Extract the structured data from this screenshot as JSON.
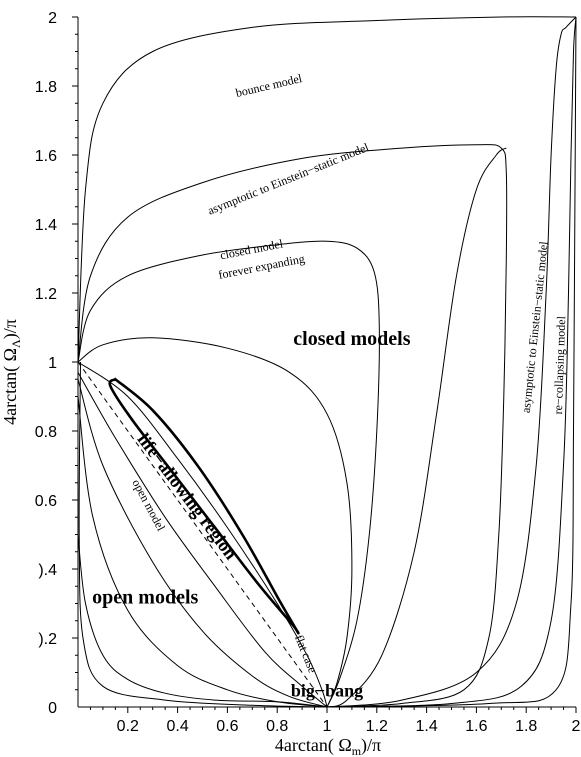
{
  "chart_data": {
    "type": "line",
    "xlabel_main": "4arctan( Ω",
    "xlabel_sub": "m",
    "xlabel_tail": ")/π",
    "ylabel_main": "4arctan( Ω",
    "ylabel_sub": "Λ",
    "ylabel_tail": ")/π",
    "xlim": [
      0,
      2
    ],
    "ylim": [
      0,
      2
    ],
    "xticks": [
      {
        "v": 0.2,
        "label": "0.2"
      },
      {
        "v": 0.4,
        "label": "0.4"
      },
      {
        "v": 0.6,
        "label": "0.6"
      },
      {
        "v": 0.8,
        "label": "0.8"
      },
      {
        "v": 1.0,
        "label": "1"
      },
      {
        "v": 1.2,
        "label": "1.2"
      },
      {
        "v": 1.4,
        "label": "1.4"
      },
      {
        "v": 1.6,
        "label": "1.6"
      },
      {
        "v": 1.8,
        "label": "1.8"
      },
      {
        "v": 2.0,
        "label": "2"
      }
    ],
    "yticks": [
      {
        "v": 0.0,
        "label": "0"
      },
      {
        "v": 0.2,
        "label": ").2"
      },
      {
        "v": 0.4,
        "label": ").4"
      },
      {
        "v": 0.6,
        "label": "0.6"
      },
      {
        "v": 0.8,
        "label": "0.8"
      },
      {
        "v": 1.0,
        "label": "1"
      },
      {
        "v": 1.2,
        "label": "1.2"
      },
      {
        "v": 1.4,
        "label": "1.4"
      },
      {
        "v": 1.6,
        "label": "1.6"
      },
      {
        "v": 1.8,
        "label": "1.8"
      },
      {
        "v": 2.0,
        "label": "2"
      }
    ],
    "grid": false,
    "series": [
      {
        "points": [
          [
            0,
            1.0
          ],
          [
            0.03,
            1.5
          ],
          [
            0.1,
            1.75
          ],
          [
            0.3,
            1.9
          ],
          [
            0.7,
            1.97
          ],
          [
            1.2,
            1.99
          ],
          [
            1.7,
            2.0
          ],
          [
            2,
            2.0
          ]
        ]
      },
      {
        "points": [
          [
            0,
            1.0
          ],
          [
            0.05,
            1.25
          ],
          [
            0.2,
            1.42
          ],
          [
            0.5,
            1.52
          ],
          [
            0.9,
            1.59
          ],
          [
            1.3,
            1.62
          ],
          [
            1.6,
            1.63
          ],
          [
            1.7,
            1.62
          ],
          [
            1.72,
            1.55
          ],
          [
            1.72,
            1.3
          ],
          [
            1.71,
            0.9
          ],
          [
            1.69,
            0.5
          ],
          [
            1.65,
            0.2
          ],
          [
            1.55,
            0.05
          ],
          [
            1.3,
            0.01
          ],
          [
            1.0,
            0
          ]
        ]
      },
      {
        "points": [
          [
            0,
            1.0
          ],
          [
            0.05,
            1.15
          ],
          [
            0.2,
            1.25
          ],
          [
            0.5,
            1.31
          ],
          [
            0.8,
            1.34
          ],
          [
            1.0,
            1.35
          ],
          [
            1.12,
            1.33
          ],
          [
            1.19,
            1.26
          ],
          [
            1.21,
            1.1
          ],
          [
            1.2,
            0.8
          ],
          [
            1.17,
            0.5
          ],
          [
            1.12,
            0.25
          ],
          [
            1.05,
            0.08
          ],
          [
            1.0,
            0
          ]
        ]
      },
      {
        "points": [
          [
            0,
            1.0
          ],
          [
            0.1,
            1.05
          ],
          [
            0.3,
            1.07
          ],
          [
            0.6,
            1.04
          ],
          [
            0.85,
            0.97
          ],
          [
            1.0,
            0.85
          ],
          [
            1.08,
            0.65
          ],
          [
            1.1,
            0.4
          ],
          [
            1.08,
            0.2
          ],
          [
            1.04,
            0.07
          ],
          [
            1.0,
            0
          ]
        ]
      },
      {
        "points": [
          [
            0,
            1.0
          ],
          [
            0.2,
            0.9
          ],
          [
            0.4,
            0.72
          ],
          [
            0.6,
            0.52
          ],
          [
            0.8,
            0.3
          ],
          [
            0.92,
            0.15
          ],
          [
            0.98,
            0.05
          ],
          [
            1.0,
            0
          ]
        ]
      },
      {
        "points": [
          [
            0,
            0.97
          ],
          [
            0.15,
            0.78
          ],
          [
            0.35,
            0.55
          ],
          [
            0.55,
            0.35
          ],
          [
            0.75,
            0.16
          ],
          [
            0.9,
            0.06
          ],
          [
            1.0,
            0
          ]
        ]
      },
      {
        "points": [
          [
            0,
            0.95
          ],
          [
            0.1,
            0.7
          ],
          [
            0.3,
            0.42
          ],
          [
            0.5,
            0.22
          ],
          [
            0.7,
            0.09
          ],
          [
            0.85,
            0.03
          ],
          [
            1.0,
            0
          ]
        ]
      },
      {
        "points": [
          [
            0,
            0.9
          ],
          [
            0.06,
            0.55
          ],
          [
            0.2,
            0.28
          ],
          [
            0.4,
            0.12
          ],
          [
            0.6,
            0.05
          ],
          [
            0.8,
            0.015
          ],
          [
            1.0,
            0
          ]
        ]
      },
      {
        "points": [
          [
            0.01,
            1.0
          ],
          [
            0.005,
            0.5
          ],
          [
            0.02,
            0.2
          ],
          [
            0.1,
            0.06
          ],
          [
            0.35,
            0.02
          ],
          [
            0.7,
            0.005
          ],
          [
            1.0,
            0
          ]
        ]
      },
      {
        "points": [
          [
            1.0,
            0
          ],
          [
            1.08,
            0.02
          ],
          [
            1.22,
            0.15
          ],
          [
            1.35,
            0.45
          ],
          [
            1.44,
            0.85
          ],
          [
            1.52,
            1.25
          ],
          [
            1.6,
            1.5
          ],
          [
            1.68,
            1.6
          ],
          [
            1.72,
            1.62
          ]
        ]
      },
      {
        "points": [
          [
            1.0,
            0
          ],
          [
            1.3,
            0.02
          ],
          [
            1.6,
            0.1
          ],
          [
            1.76,
            0.3
          ],
          [
            1.84,
            0.7
          ],
          [
            1.88,
            1.2
          ],
          [
            1.9,
            1.6
          ],
          [
            1.92,
            1.85
          ],
          [
            1.94,
            1.95
          ],
          [
            1.96,
            1.97
          ],
          [
            2.0,
            2.0
          ]
        ]
      },
      {
        "points": [
          [
            1.0,
            0
          ],
          [
            1.5,
            0.01
          ],
          [
            1.78,
            0.06
          ],
          [
            1.9,
            0.25
          ],
          [
            1.95,
            0.7
          ],
          [
            1.97,
            1.2
          ],
          [
            1.98,
            1.6
          ],
          [
            1.99,
            1.9
          ],
          [
            2.0,
            2.0
          ]
        ]
      },
      {
        "points": [
          [
            1.0,
            0
          ],
          [
            1.65,
            0.01
          ],
          [
            1.92,
            0.05
          ],
          [
            1.98,
            0.3
          ],
          [
            1.99,
            0.8
          ],
          [
            1.995,
            1.4
          ],
          [
            2.0,
            2.0
          ]
        ]
      },
      {
        "points": [
          [
            1.0,
            0
          ],
          [
            0.8,
            0.015
          ],
          [
            0.55,
            0.02
          ],
          [
            0.35,
            0.04
          ],
          [
            0.2,
            0.08
          ],
          [
            0.1,
            0.15
          ],
          [
            0.03,
            0.3
          ],
          [
            0,
            0.5
          ]
        ]
      }
    ],
    "flat_case": {
      "points": [
        [
          0,
          1.0
        ],
        [
          1.0,
          0
        ]
      ],
      "label": "flat case"
    },
    "region": {
      "label": "life-allowing region",
      "outline": [
        [
          0.15,
          0.95
        ],
        [
          0.3,
          0.86
        ],
        [
          0.48,
          0.7
        ],
        [
          0.66,
          0.5
        ],
        [
          0.8,
          0.32
        ],
        [
          0.88,
          0.22
        ],
        [
          0.86,
          0.24
        ],
        [
          0.72,
          0.36
        ],
        [
          0.55,
          0.52
        ],
        [
          0.38,
          0.68
        ],
        [
          0.22,
          0.83
        ],
        [
          0.13,
          0.93
        ],
        [
          0.15,
          0.95
        ]
      ]
    },
    "annotations": [
      {
        "key": "bounce",
        "text": "bounce model",
        "x": 0.77,
        "y": 1.79,
        "rot": -13,
        "size": 12
      },
      {
        "key": "asym1",
        "text": "asymptotic to Einstein−static model",
        "x": 0.85,
        "y": 1.52,
        "rot": -22,
        "size": 12
      },
      {
        "key": "closed_forever1",
        "text": "closed model",
        "x": 0.7,
        "y": 1.315,
        "rot": -11,
        "size": 12
      },
      {
        "key": "closed_forever2",
        "text": "forever expanding",
        "x": 0.74,
        "y": 1.265,
        "rot": -11,
        "size": 12
      },
      {
        "key": "asym2",
        "text": "asymptotic to Einstein−static model",
        "x": 1.85,
        "y": 1.1,
        "rot": -84,
        "size": 12
      },
      {
        "key": "recollapse",
        "text": "re−collapsing model",
        "x": 1.95,
        "y": 0.99,
        "rot": -88,
        "size": 12
      },
      {
        "key": "closed",
        "text": "closed models",
        "x": 1.1,
        "y": 1.05,
        "rot": 0,
        "size": 20,
        "bold": true
      },
      {
        "key": "open",
        "text": "open models",
        "x": 0.27,
        "y": 0.3,
        "rot": 0,
        "size": 20,
        "bold": true
      },
      {
        "key": "bigbang",
        "text": "big−bang",
        "x": 1.0,
        "y": 0.03,
        "rot": 0,
        "size": 18,
        "bold": true
      },
      {
        "key": "openmodel",
        "text": "open model",
        "x": 0.27,
        "y": 0.58,
        "rot": 62,
        "size": 12
      },
      {
        "key": "life",
        "text": "life−allowing region",
        "x": 0.42,
        "y": 0.6,
        "rot": 53,
        "size": 18,
        "bold": true
      },
      {
        "key": "flatcase",
        "text": "flat case",
        "x": 0.9,
        "y": 0.15,
        "rot": 68,
        "size": 12
      }
    ]
  }
}
